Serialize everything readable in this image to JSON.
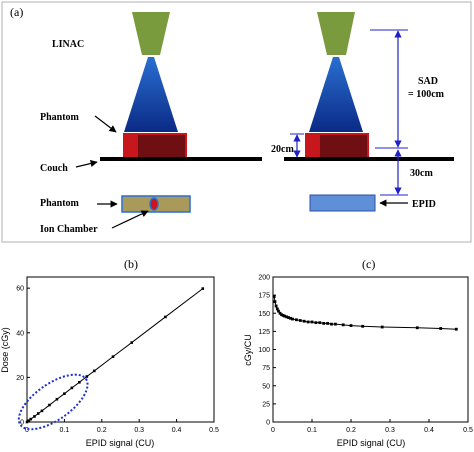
{
  "panel_a": {
    "panel_label": "(a)",
    "labels": {
      "linac": "LINAC",
      "phantom_top": "Phantom",
      "couch": "Couch",
      "phantom_bottom": "Phantom",
      "ion_chamber": "Ion Chamber",
      "sad_line1": "SAD",
      "sad_line2": "= 100cm",
      "dist_20": "20cm",
      "dist_30": "30cm",
      "epid": "EPID"
    },
    "colors": {
      "head": "#7a9a3e",
      "beam_top": "#2a6fd0",
      "beam_bottom": "#0a2a86",
      "phantom_red": "#c8161d",
      "phantom_dark": "#6f0f14",
      "couch": "#000000",
      "phantom_tan": "#a99a5c",
      "epid": "#5f8fd6",
      "arrow_blue": "#2020c8",
      "frame": "#b0b0b0"
    }
  },
  "chart_data": [
    {
      "panel_label": "(b)",
      "type": "line",
      "xlabel": "EPID signal (CU)",
      "ylabel": "Dose (cGy)",
      "xlim": [
        0,
        0.5
      ],
      "ylim": [
        0,
        65
      ],
      "xticks": [
        0,
        0.1,
        0.2,
        0.3,
        0.4,
        0.5
      ],
      "xticklabels": [
        "0",
        "0.1",
        "0.2",
        "0.3",
        "0.4",
        "0.5"
      ],
      "yticks": [
        0,
        20,
        40,
        60
      ],
      "yticklabels": [
        "0",
        "20",
        "40",
        "60"
      ],
      "series": [
        {
          "x": [
            0.0,
            0.005,
            0.01,
            0.02,
            0.03,
            0.04,
            0.06,
            0.08,
            0.1,
            0.12,
            0.14,
            0.16,
            0.18,
            0.23,
            0.28,
            0.37,
            0.47
          ],
          "y": [
            0.0,
            0.6,
            1.3,
            2.5,
            3.8,
            5.0,
            7.6,
            10.2,
            12.7,
            15.3,
            17.8,
            20.4,
            22.9,
            29.3,
            35.6,
            47.1,
            59.8
          ]
        }
      ],
      "annotation": {
        "shape": "dotted-ellipse",
        "color": "#1a2fd6"
      },
      "marker_color": "#000000"
    },
    {
      "panel_label": "(c)",
      "type": "line",
      "xlabel": "EPID signal (CU)",
      "ylabel": "cGy/CU",
      "xlim": [
        0,
        0.5
      ],
      "ylim": [
        0,
        200
      ],
      "xticks": [
        0,
        0.1,
        0.2,
        0.3,
        0.4,
        0.5
      ],
      "xticklabels": [
        "0",
        "0.1",
        "0.2",
        "0.3",
        "0.4",
        "0.5"
      ],
      "yticks": [
        0,
        25,
        50,
        75,
        100,
        125,
        150,
        175,
        200
      ],
      "yticklabels": [
        "0",
        "25",
        "50",
        "75",
        "100",
        "125",
        "150",
        "175",
        "200"
      ],
      "series": [
        {
          "x": [
            0.003,
            0.005,
            0.008,
            0.011,
            0.014,
            0.018,
            0.022,
            0.026,
            0.03,
            0.035,
            0.04,
            0.045,
            0.05,
            0.06,
            0.07,
            0.08,
            0.09,
            0.1,
            0.11,
            0.12,
            0.13,
            0.14,
            0.15,
            0.16,
            0.18,
            0.2,
            0.23,
            0.28,
            0.37,
            0.43,
            0.47
          ],
          "y": [
            173,
            166,
            160,
            156,
            153,
            150,
            148,
            147,
            146,
            145,
            144,
            143,
            142,
            141,
            140,
            139,
            138,
            138,
            137,
            137,
            136,
            136,
            135,
            135,
            134,
            133,
            132,
            131,
            130,
            129,
            128
          ]
        }
      ],
      "marker_color": "#000000"
    }
  ]
}
